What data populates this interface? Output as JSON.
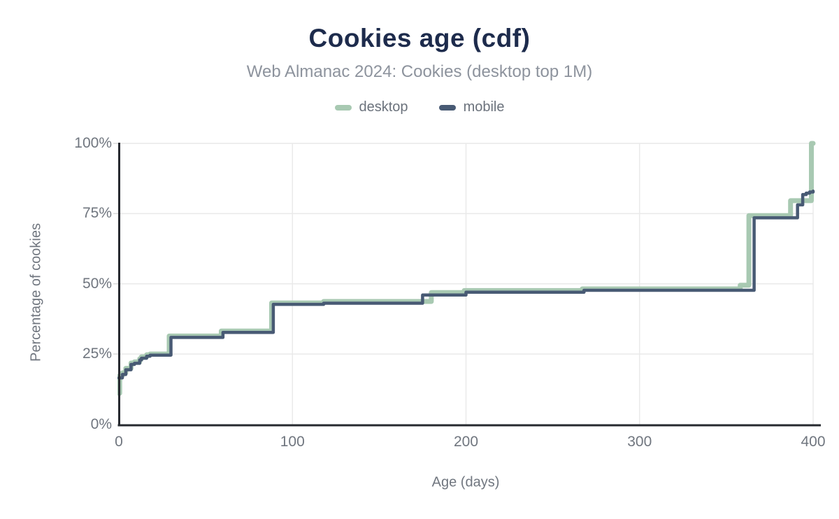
{
  "chart_data": {
    "type": "line",
    "subtype": "cdf-step",
    "step_interpolation": "after",
    "title": "Cookies age (cdf)",
    "subtitle": "Web Almanac 2024: Cookies (desktop top 1M)",
    "xlabel": "Age (days)",
    "ylabel": "Percentage of cookies",
    "xlim": [
      0,
      400
    ],
    "ylim": [
      0,
      100
    ],
    "grid": true,
    "legend_position": "top",
    "x_tick_values": [
      0,
      100,
      200,
      300,
      400
    ],
    "x_tick_labels": [
      "0",
      "100",
      "200",
      "300",
      "400"
    ],
    "y_tick_values": [
      0,
      25,
      50,
      75,
      100
    ],
    "y_tick_labels": [
      "0%",
      "25%",
      "50%",
      "75%",
      "100%"
    ],
    "series": [
      {
        "name": "desktop",
        "color": "#a8c9b2",
        "stroke_width": 7,
        "points": [
          [
            0,
            11
          ],
          [
            0.5,
            17.3
          ],
          [
            2,
            18.3
          ],
          [
            4,
            19.9
          ],
          [
            7,
            21.8
          ],
          [
            9,
            22.2
          ],
          [
            12,
            23.3
          ],
          [
            13,
            24.0
          ],
          [
            16,
            24.7
          ],
          [
            18,
            25.0
          ],
          [
            29,
            31.4
          ],
          [
            59,
            33.2
          ],
          [
            88,
            43.2
          ],
          [
            118,
            43.7
          ],
          [
            180,
            46.9
          ],
          [
            199,
            47.6
          ],
          [
            267,
            48.2
          ],
          [
            358,
            49.5
          ],
          [
            363,
            74.3
          ],
          [
            387,
            79.6
          ],
          [
            399,
            100
          ],
          [
            400,
            100
          ]
        ]
      },
      {
        "name": "mobile",
        "color": "#485a74",
        "stroke_width": 4.5,
        "points": [
          [
            0,
            16.5
          ],
          [
            2,
            17.7
          ],
          [
            4,
            19.4
          ],
          [
            7,
            21.3
          ],
          [
            9,
            21.7
          ],
          [
            12,
            22.9
          ],
          [
            13,
            23.5
          ],
          [
            16,
            24.2
          ],
          [
            18,
            24.6
          ],
          [
            30,
            30.9
          ],
          [
            60,
            32.7
          ],
          [
            89,
            42.7
          ],
          [
            118,
            43.1
          ],
          [
            175,
            46.0
          ],
          [
            200,
            47.0
          ],
          [
            268,
            47.7
          ],
          [
            366,
            73.5
          ],
          [
            391,
            78.1
          ],
          [
            394,
            81.8
          ],
          [
            396,
            82.3
          ],
          [
            398,
            82.7
          ],
          [
            400,
            83.0
          ]
        ]
      }
    ],
    "colors": {
      "title": "#1d2b4c",
      "subtitle": "#8d939d",
      "tick_label": "#70767f",
      "axis_line": "#26292f",
      "gridline": "#e9e9e9",
      "tick_stub": "#d8d8d8",
      "background": "#ffffff"
    }
  }
}
